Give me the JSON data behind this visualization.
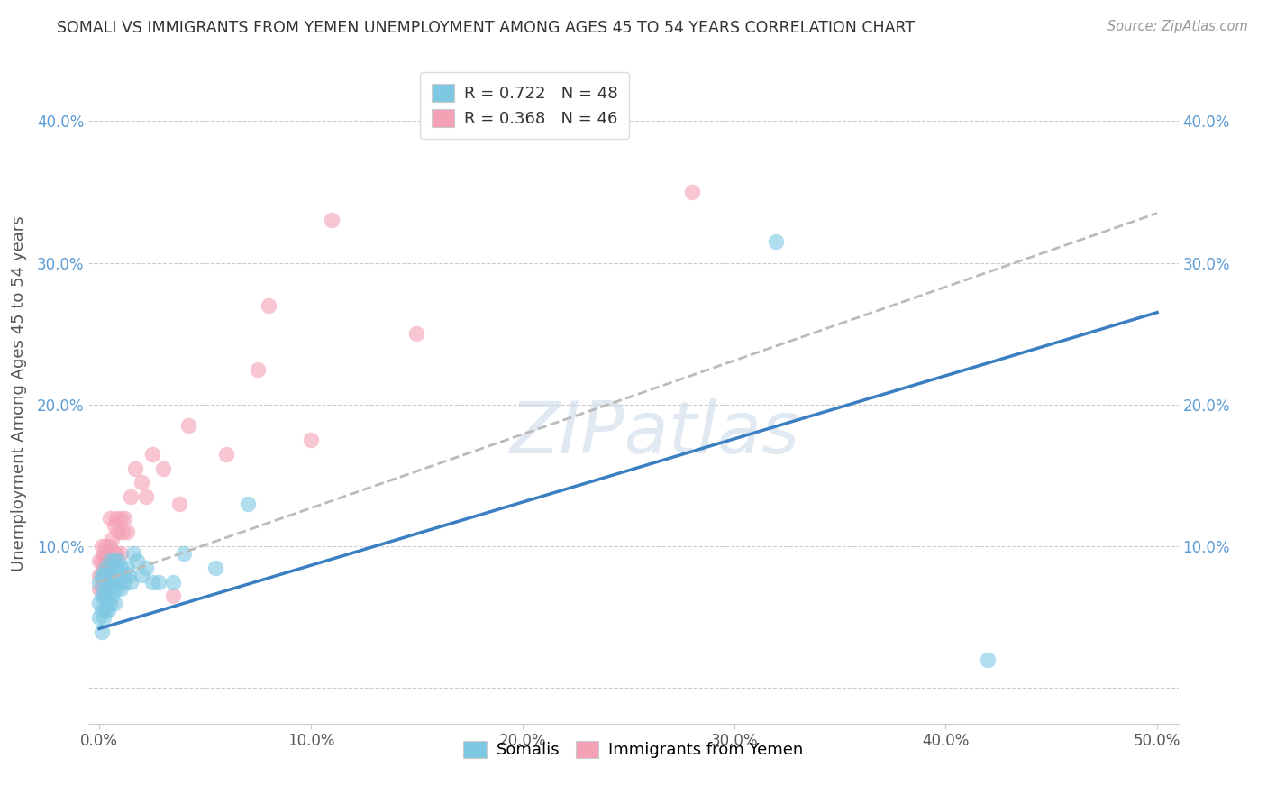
{
  "title": "SOMALI VS IMMIGRANTS FROM YEMEN UNEMPLOYMENT AMONG AGES 45 TO 54 YEARS CORRELATION CHART",
  "source": "Source: ZipAtlas.com",
  "ylabel": "Unemployment Among Ages 45 to 54 years",
  "color_blue": "#7ec8e3",
  "color_pink": "#f4a0b5",
  "line_color_blue": "#3a7fc1",
  "line_color_pink": "#c9496e",
  "line_color_gray_dashed": "#bbbbbb",
  "background_color": "#ffffff",
  "legend_label1": "Somalis",
  "legend_label2": "Immigrants from Yemen",
  "somali_x": [
    0.0,
    0.0,
    0.0,
    0.001,
    0.001,
    0.001,
    0.001,
    0.002,
    0.002,
    0.002,
    0.003,
    0.003,
    0.003,
    0.003,
    0.004,
    0.004,
    0.004,
    0.005,
    0.005,
    0.005,
    0.006,
    0.006,
    0.007,
    0.007,
    0.007,
    0.008,
    0.008,
    0.009,
    0.009,
    0.01,
    0.01,
    0.011,
    0.012,
    0.013,
    0.014,
    0.015,
    0.016,
    0.018,
    0.02,
    0.022,
    0.025,
    0.028,
    0.035,
    0.04,
    0.055,
    0.07,
    0.32,
    0.42
  ],
  "somali_y": [
    0.05,
    0.06,
    0.075,
    0.04,
    0.055,
    0.065,
    0.08,
    0.05,
    0.065,
    0.08,
    0.055,
    0.065,
    0.075,
    0.085,
    0.055,
    0.07,
    0.08,
    0.06,
    0.075,
    0.09,
    0.065,
    0.08,
    0.06,
    0.075,
    0.09,
    0.07,
    0.085,
    0.075,
    0.09,
    0.07,
    0.085,
    0.08,
    0.075,
    0.085,
    0.08,
    0.075,
    0.095,
    0.09,
    0.08,
    0.085,
    0.075,
    0.075,
    0.075,
    0.095,
    0.085,
    0.13,
    0.315,
    0.02
  ],
  "yemen_x": [
    0.0,
    0.0,
    0.0,
    0.001,
    0.001,
    0.001,
    0.001,
    0.002,
    0.002,
    0.002,
    0.003,
    0.003,
    0.003,
    0.004,
    0.004,
    0.005,
    0.005,
    0.005,
    0.006,
    0.006,
    0.007,
    0.007,
    0.008,
    0.008,
    0.009,
    0.01,
    0.01,
    0.011,
    0.012,
    0.013,
    0.015,
    0.017,
    0.02,
    0.022,
    0.025,
    0.03,
    0.035,
    0.038,
    0.042,
    0.06,
    0.075,
    0.08,
    0.1,
    0.11,
    0.15,
    0.28
  ],
  "yemen_y": [
    0.07,
    0.08,
    0.09,
    0.07,
    0.08,
    0.09,
    0.1,
    0.075,
    0.085,
    0.095,
    0.08,
    0.09,
    0.1,
    0.085,
    0.095,
    0.09,
    0.1,
    0.12,
    0.09,
    0.105,
    0.095,
    0.115,
    0.095,
    0.12,
    0.11,
    0.095,
    0.12,
    0.11,
    0.12,
    0.11,
    0.135,
    0.155,
    0.145,
    0.135,
    0.165,
    0.155,
    0.065,
    0.13,
    0.185,
    0.165,
    0.225,
    0.27,
    0.175,
    0.33,
    0.25,
    0.35
  ],
  "somali_line_x": [
    0.0,
    0.5
  ],
  "somali_line_y": [
    0.042,
    0.265
  ],
  "yemen_line_x": [
    0.0,
    0.5
  ],
  "yemen_line_y": [
    0.075,
    0.335
  ],
  "xtick_positions": [
    0.0,
    0.1,
    0.2,
    0.3,
    0.4,
    0.5
  ],
  "xtick_labels": [
    "0.0%",
    "10.0%",
    "20.0%",
    "30.0%",
    "40.0%",
    "50.0%"
  ],
  "ytick_positions": [
    0.0,
    0.1,
    0.2,
    0.3,
    0.4
  ],
  "ytick_labels": [
    "",
    "10.0%",
    "20.0%",
    "30.0%",
    "40.0%"
  ],
  "xlim": [
    -0.005,
    0.51
  ],
  "ylim": [
    -0.025,
    0.44
  ]
}
